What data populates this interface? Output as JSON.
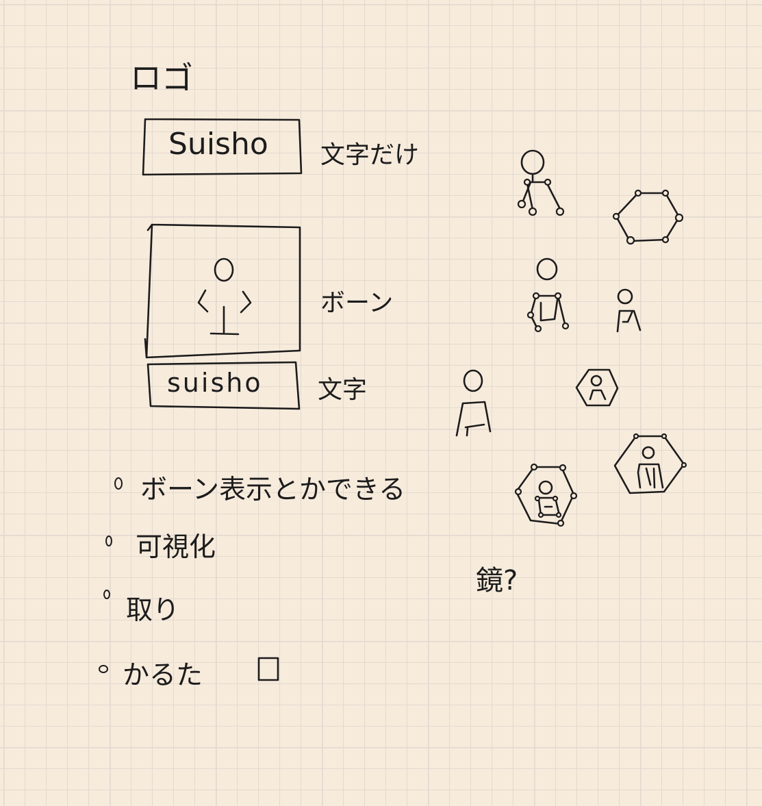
{
  "heading": "ロゴ",
  "logo_variants": [
    {
      "logo_text": "Suisho",
      "note": "文字だけ"
    },
    {
      "note": "ボーン"
    },
    {
      "logo_text": "suisho",
      "note": "文字"
    }
  ],
  "bullets": [
    "ボーン表示とかできる",
    "可視化",
    "取り",
    "かるた"
  ],
  "side_note": "鏡?"
}
